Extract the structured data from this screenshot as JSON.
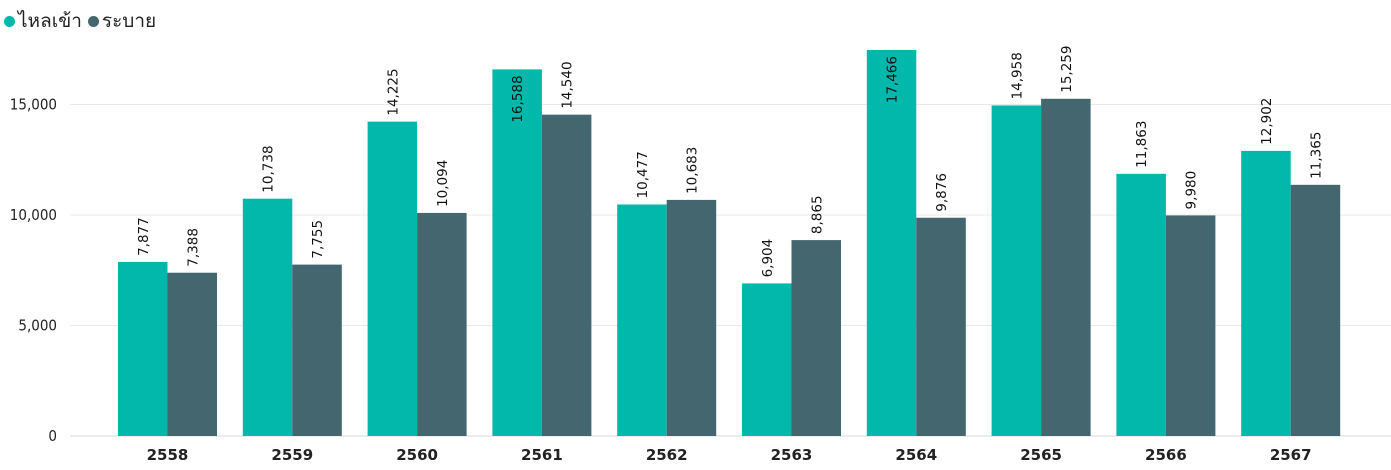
{
  "legend": {
    "series": [
      {
        "label": "ไหลเข้า",
        "color": "#01B8AA"
      },
      {
        "label": "ระบาย",
        "color": "#44666F"
      }
    ]
  },
  "chart_data": {
    "type": "bar",
    "categories": [
      "2558",
      "2559",
      "2560",
      "2561",
      "2562",
      "2563",
      "2564",
      "2565",
      "2566",
      "2567"
    ],
    "series": [
      {
        "name": "ไหลเข้า",
        "color": "#01B8AA",
        "values": [
          7877,
          10738,
          14225,
          16588,
          10477,
          6904,
          17466,
          14958,
          11863,
          12902
        ]
      },
      {
        "name": "ระบาย",
        "color": "#44666F",
        "values": [
          7388,
          7755,
          10094,
          14540,
          10683,
          8865,
          9876,
          15259,
          9980,
          11365
        ]
      }
    ],
    "data_labels": {
      "ไหลเข้า": [
        "7,877",
        "10,738",
        "14,225",
        "16,588",
        "10,477",
        "6,904",
        "17,466",
        "14,958",
        "11,863",
        "12,902"
      ],
      "ระบาย": [
        "7,388",
        "7,755",
        "10,094",
        "14,540",
        "10,683",
        "8,865",
        "9,876",
        "15,259",
        "9,980",
        "11,365"
      ]
    },
    "y_ticks": [
      0,
      5000,
      10000,
      15000
    ],
    "y_tick_labels": [
      "0",
      "5,000",
      "10,000",
      "15,000"
    ],
    "ylim": [
      0,
      17466
    ],
    "grid": true,
    "legend_position": "top-left",
    "title": "",
    "xlabel": "",
    "ylabel": ""
  }
}
